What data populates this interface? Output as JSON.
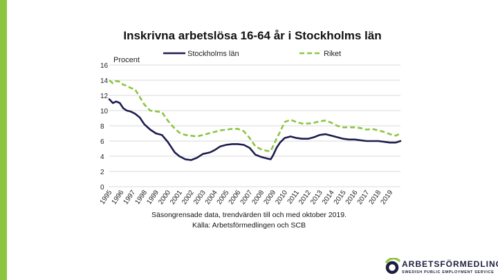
{
  "chart_data": {
    "type": "line",
    "title": "Inskrivna arbetslösa 16-64 år i Stockholms län",
    "ylabel": "Procent",
    "xlabel": "",
    "ylim": [
      0,
      16
    ],
    "yticks": [
      0,
      2,
      4,
      6,
      8,
      10,
      12,
      14,
      16
    ],
    "xlim": [
      1995,
      2019.9
    ],
    "xticks": [
      "1995",
      "1996",
      "1997",
      "1998",
      "1999",
      "2000",
      "2001",
      "2002",
      "2003",
      "2004",
      "2005",
      "2006",
      "2007",
      "2008",
      "2009",
      "2010",
      "2011",
      "2012",
      "2013",
      "2014",
      "2015",
      "2016",
      "2017",
      "2018",
      "2019"
    ],
    "grid": true,
    "legend_position": "top",
    "series": [
      {
        "name": "Stockholms län",
        "color": "#1c1c4e",
        "style": "solid",
        "x": [
          1995,
          1995.3,
          1995.6,
          1995.9,
          1996.2,
          1996.5,
          1996.8,
          1997.2,
          1997.6,
          1998.0,
          1998.5,
          1999.0,
          1999.5,
          2000.0,
          2000.3,
          2000.6,
          2001.0,
          2001.5,
          2002.0,
          2002.5,
          2003.0,
          2003.3,
          2003.6,
          2004.0,
          2004.5,
          2005.0,
          2005.5,
          2006.0,
          2006.5,
          2007.0,
          2007.5,
          2008.0,
          2008.5,
          2008.8,
          2009.0,
          2009.3,
          2009.6,
          2010.0,
          2010.5,
          2011.0,
          2011.5,
          2012.0,
          2012.5,
          2013.0,
          2013.5,
          2014.0,
          2014.5,
          2015.0,
          2015.5,
          2016.0,
          2016.5,
          2017.0,
          2017.5,
          2018.0,
          2018.5,
          2019.0,
          2019.5,
          2019.9
        ],
        "y": [
          11.5,
          11.0,
          11.2,
          11.0,
          10.3,
          10.0,
          9.9,
          9.6,
          9.1,
          8.2,
          7.5,
          7.0,
          6.8,
          5.9,
          5.2,
          4.5,
          4.0,
          3.6,
          3.5,
          3.8,
          4.3,
          4.4,
          4.5,
          4.8,
          5.3,
          5.5,
          5.6,
          5.6,
          5.5,
          5.1,
          4.2,
          3.9,
          3.7,
          3.6,
          4.1,
          5.1,
          5.8,
          6.4,
          6.6,
          6.4,
          6.3,
          6.3,
          6.5,
          6.8,
          6.9,
          6.7,
          6.5,
          6.3,
          6.2,
          6.2,
          6.1,
          6.0,
          6.0,
          6.0,
          5.9,
          5.8,
          5.8,
          6.0
        ]
      },
      {
        "name": "Riket",
        "color": "#8dc43f",
        "style": "dashed",
        "x": [
          1995,
          1995.3,
          1995.6,
          1995.9,
          1996.2,
          1996.5,
          1996.8,
          1997.2,
          1997.6,
          1998.0,
          1998.5,
          1999.0,
          1999.5,
          2000.0,
          2000.5,
          2001.0,
          2001.5,
          2002.0,
          2002.5,
          2003.0,
          2003.5,
          2004.0,
          2004.5,
          2005.0,
          2005.5,
          2006.0,
          2006.5,
          2007.0,
          2007.5,
          2008.0,
          2008.5,
          2008.8,
          2009.0,
          2009.3,
          2009.6,
          2010.0,
          2010.5,
          2011.0,
          2011.5,
          2012.0,
          2012.5,
          2013.0,
          2013.5,
          2014.0,
          2014.5,
          2015.0,
          2015.5,
          2016.0,
          2016.5,
          2017.0,
          2017.5,
          2018.0,
          2018.5,
          2019.0,
          2019.5,
          2019.9
        ],
        "y": [
          14.0,
          13.6,
          13.9,
          13.8,
          13.4,
          13.3,
          13.0,
          12.8,
          11.8,
          10.8,
          10.0,
          9.9,
          9.8,
          8.7,
          7.8,
          7.1,
          6.8,
          6.7,
          6.6,
          6.8,
          7.0,
          7.2,
          7.4,
          7.5,
          7.6,
          7.6,
          7.3,
          6.4,
          5.3,
          4.9,
          4.7,
          4.7,
          5.3,
          6.3,
          7.2,
          8.5,
          8.8,
          8.5,
          8.3,
          8.3,
          8.4,
          8.6,
          8.7,
          8.4,
          8.0,
          7.8,
          7.8,
          7.8,
          7.7,
          7.5,
          7.6,
          7.4,
          7.2,
          6.9,
          6.7,
          7.0
        ]
      }
    ]
  },
  "notes": {
    "line1": "Säsongrensade data, trendvärden till och med oktober 2019.",
    "line2": "Källa: Arbetsförmedlingen och SCB"
  },
  "branding": {
    "name": "ARBETSFÖRMEDLINGEN",
    "tagline": "SWEDISH PUBLIC EMPLOYMENT SERVICE",
    "accent_color": "#8dc43f",
    "logo_color": "#1d1d3f"
  }
}
